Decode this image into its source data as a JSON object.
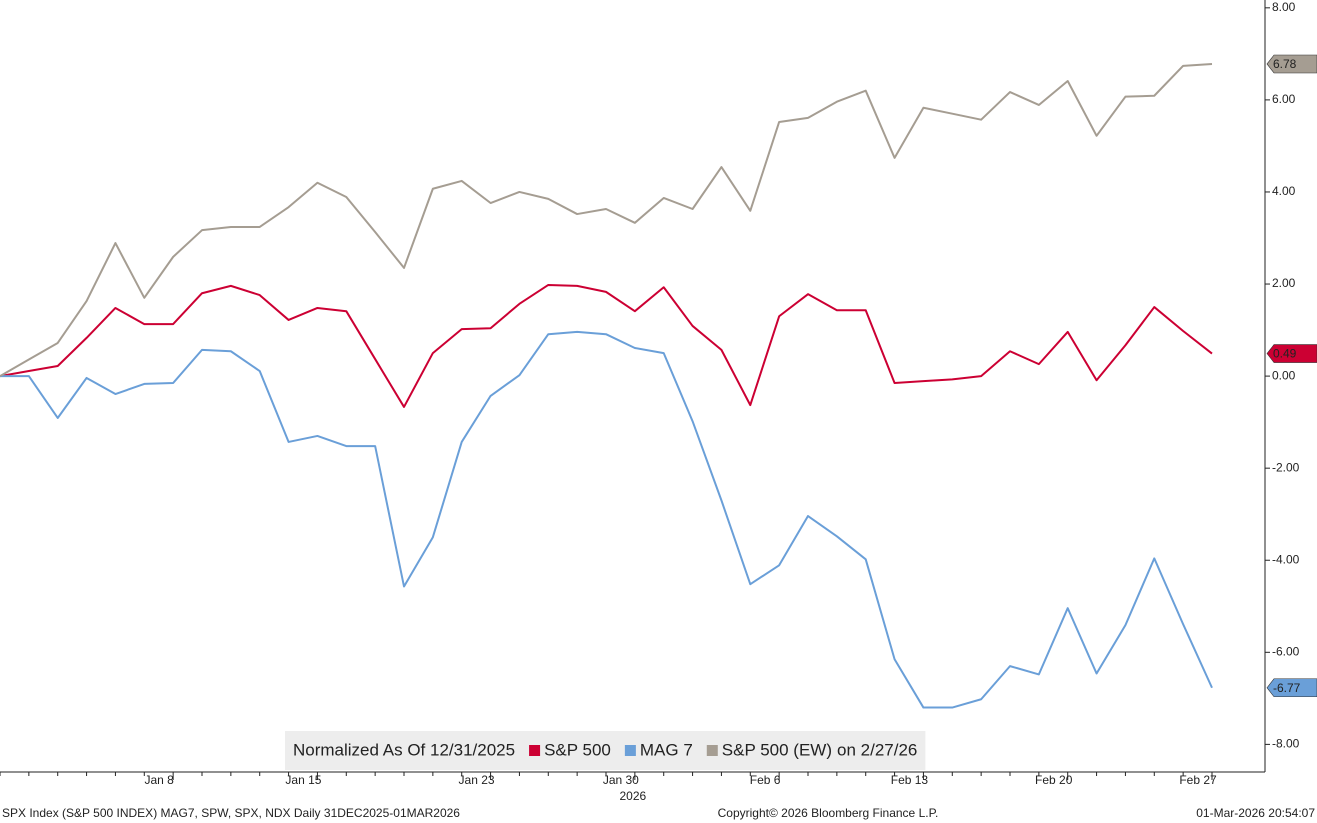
{
  "chart_data": {
    "type": "line",
    "categories": [
      null,
      null,
      null,
      null,
      null,
      null,
      "Jan 8",
      null,
      null,
      null,
      null,
      "Jan 15",
      null,
      null,
      null,
      null,
      null,
      "Jan 23",
      null,
      null,
      null,
      null,
      "Jan 30",
      null,
      null,
      null,
      null,
      "Feb 6",
      null,
      null,
      null,
      null,
      "Feb 13",
      null,
      null,
      null,
      null,
      "Feb 20",
      null,
      null,
      null,
      null,
      "Feb 27"
    ],
    "x_year_label": "2026",
    "x_year_index": 22,
    "series": [
      {
        "name": "S&P 500",
        "color": "#cc0033",
        "values": [
          0,
          0.11,
          0.22,
          0.83,
          1.48,
          1.13,
          1.13,
          1.8,
          1.96,
          1.76,
          1.22,
          1.48,
          1.41,
          0.37,
          -0.67,
          0.5,
          1.02,
          1.04,
          1.57,
          1.98,
          1.96,
          1.83,
          1.41,
          1.93,
          1.09,
          0.57,
          -0.63,
          1.3,
          1.78,
          1.43,
          1.43,
          -0.15,
          -0.11,
          -0.07,
          0.0,
          0.54,
          0.26,
          0.96,
          -0.09,
          0.67,
          1.5,
          0.98,
          0.49
        ]
      },
      {
        "name": "MAG 7",
        "color": "#6a9fd8",
        "values": [
          0,
          0,
          -0.91,
          -0.04,
          -0.39,
          -0.17,
          -0.15,
          0.57,
          0.54,
          0.11,
          -1.43,
          -1.3,
          -1.52,
          -1.52,
          -4.57,
          -3.5,
          -1.43,
          -0.43,
          0.02,
          0.91,
          0.96,
          0.91,
          0.61,
          0.5,
          -0.98,
          -2.7,
          -4.52,
          -4.11,
          -3.04,
          -3.48,
          -3.98,
          -6.15,
          -7.2,
          -7.2,
          -7.02,
          -6.3,
          -6.48,
          -5.04,
          -6.46,
          -5.41,
          -3.96,
          -5.39,
          -6.77
        ]
      },
      {
        "name": "S&P 500 (EW)",
        "color": "#a59d92",
        "values": [
          0,
          0.36,
          0.72,
          1.63,
          2.89,
          1.7,
          2.59,
          3.17,
          3.24,
          3.24,
          3.67,
          4.2,
          3.89,
          3.13,
          2.35,
          4.07,
          4.24,
          3.76,
          4.0,
          3.85,
          3.52,
          3.63,
          3.33,
          3.87,
          3.63,
          4.54,
          3.59,
          5.52,
          5.61,
          5.96,
          6.2,
          4.74,
          5.83,
          5.7,
          5.57,
          6.17,
          5.89,
          6.41,
          5.22,
          6.07,
          6.09,
          6.74,
          6.78
        ]
      }
    ],
    "legend_title": "Normalized As Of 12/31/2025",
    "legend_note": "on 2/27/26",
    "ylim": [
      -8.6,
      8.17
    ],
    "yticks": [
      {
        "value": 8,
        "label": "8.00"
      },
      {
        "value": 6,
        "label": "6.00"
      },
      {
        "value": 4,
        "label": "4.00"
      },
      {
        "value": 2,
        "label": "2.00"
      },
      {
        "value": 0,
        "label": "0.00"
      },
      {
        "value": -2,
        "label": "-2.00"
      },
      {
        "value": -4,
        "label": "-4.00"
      },
      {
        "value": -6,
        "label": "-6.00"
      },
      {
        "value": -8,
        "label": "-8.00"
      }
    ],
    "grid": false,
    "footer_left": "SPX Index (S&P 500 INDEX) MAG7, SPW, SPX, NDX Daily 31DEC2025-01MAR2026",
    "footer_center": "Copyright© 2026 Bloomberg Finance L.P.",
    "footer_right": "01-Mar-2026 20:54:07"
  }
}
